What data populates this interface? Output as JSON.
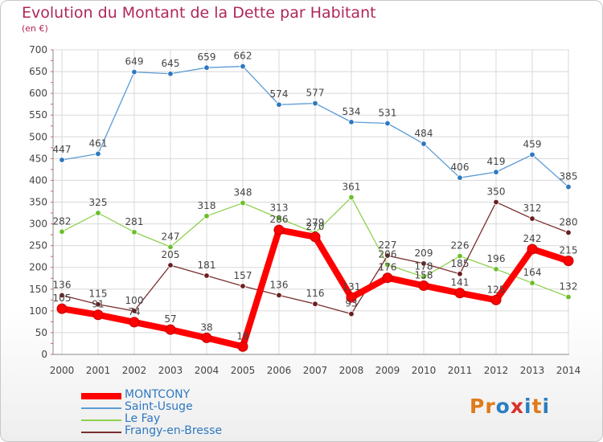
{
  "title": "Evolution du Montant de la Dette par Habitant",
  "unit": "(en €)",
  "logo": {
    "text": "Proxiti",
    "letters": [
      "P",
      "r",
      "o",
      "x",
      "i",
      "t",
      "i"
    ],
    "colors": [
      "#e07a1a",
      "#e07a1a",
      "#2a7fc0",
      "#d8322a",
      "#2a7fc0",
      "#e07a1a",
      "#2a7fc0"
    ]
  },
  "chart_data": {
    "type": "line",
    "title": "Evolution du Montant de la Dette par Habitant",
    "ylabel": "(en €)",
    "xlabel": "",
    "categories": [
      "2000",
      "2001",
      "2002",
      "2003",
      "2004",
      "2005",
      "2006",
      "2007",
      "2008",
      "2009",
      "2010",
      "2011",
      "2012",
      "2013",
      "2014"
    ],
    "ylim": [
      0,
      700
    ],
    "yticks": [
      "0",
      "50",
      "100",
      "150",
      "200",
      "250",
      "300",
      "350",
      "400",
      "450",
      "500",
      "550",
      "600",
      "650",
      "700"
    ],
    "grid": true,
    "legend_position": "bottom-left",
    "series": [
      {
        "name": "Saint-Usuge",
        "color": "#5b9bd5",
        "dot": "#2e78c0",
        "labelColor": "#444444",
        "values": [
          447,
          461,
          649,
          645,
          659,
          662,
          574,
          577,
          534,
          531,
          484,
          406,
          419,
          459,
          385
        ],
        "labels": [
          "447",
          "461",
          "649",
          "645",
          "659",
          "662",
          "574",
          "577",
          "534",
          "531",
          "484",
          "406",
          "419",
          "459",
          "385"
        ]
      },
      {
        "name": "Le Fay",
        "color": "#8fd14f",
        "dot": "#6abf2a",
        "labelColor": "#444444",
        "values": [
          282,
          325,
          281,
          247,
          318,
          348,
          313,
          279,
          361,
          206,
          178,
          226,
          196,
          164,
          132
        ],
        "labels": [
          "282",
          "325",
          "281",
          "247",
          "318",
          "348",
          "313",
          "279",
          "361",
          "206",
          "178",
          "226",
          "196",
          "164",
          "132"
        ]
      },
      {
        "name": "Frangy-en-Bresse",
        "color": "#7a2e2e",
        "dot": "#6a1e1e",
        "labelColor": "#444444",
        "values": [
          136,
          115,
          100,
          205,
          181,
          157,
          136,
          116,
          93,
          227,
          209,
          185,
          350,
          312,
          280
        ],
        "labels": [
          "136",
          "115",
          "100",
          "205",
          "181",
          "157",
          "136",
          "116",
          "93",
          "227",
          "209",
          "185",
          "350",
          "312",
          "280"
        ]
      },
      {
        "name": "MONTCONY",
        "color": "#ff0000",
        "dot": "#e00000",
        "labelColor": "#444444",
        "values": [
          105,
          91,
          74,
          57,
          38,
          18,
          286,
          270,
          131,
          176,
          158,
          141,
          125,
          242,
          215
        ],
        "labels": [
          "105",
          "91",
          "74",
          "57",
          "38",
          "18",
          "286",
          "270",
          "131",
          "176",
          "158",
          "141",
          "125",
          "242",
          "215"
        ]
      }
    ]
  },
  "legend": [
    {
      "name": "MONTCONY",
      "color": "#ff0000",
      "textColor": "#2e78c0"
    },
    {
      "name": "Saint-Usuge",
      "color": "#5b9bd5",
      "textColor": "#2e78c0"
    },
    {
      "name": "Le Fay",
      "color": "#8fd14f",
      "textColor": "#2e78c0"
    },
    {
      "name": "Frangy-en-Bresse",
      "color": "#7a2e2e",
      "textColor": "#2e78c0"
    }
  ]
}
